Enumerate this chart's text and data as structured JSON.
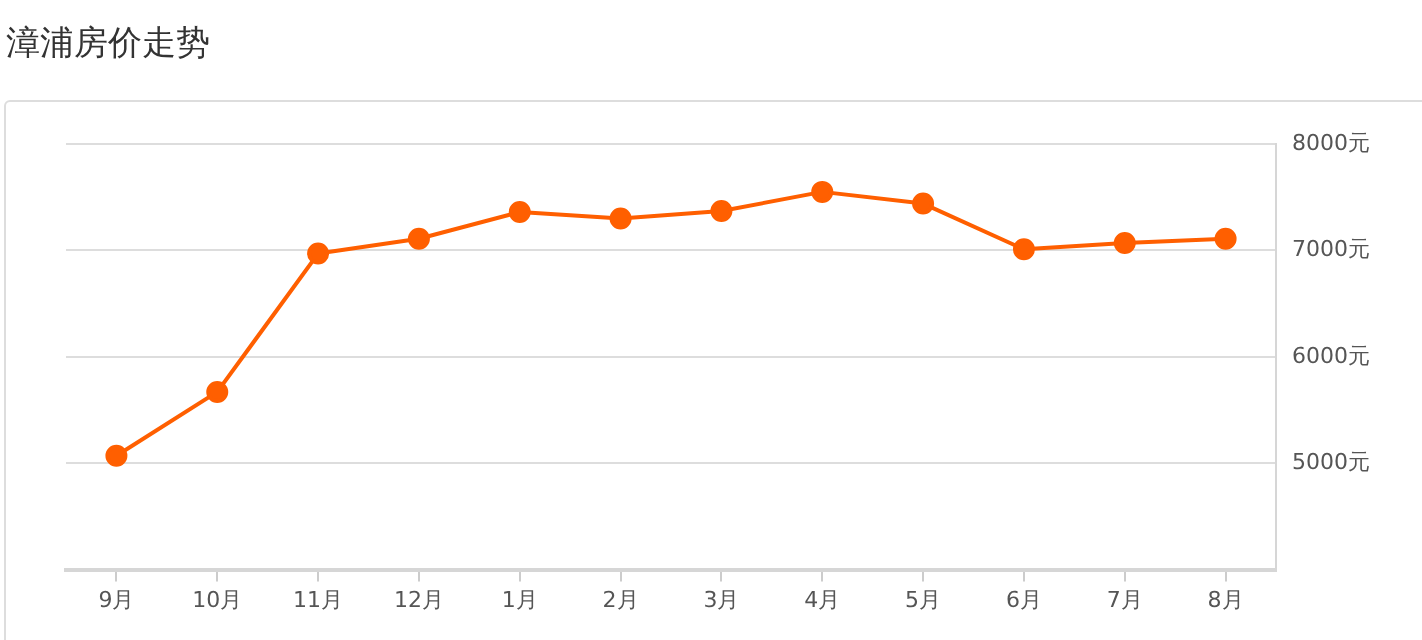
{
  "chart_data": {
    "type": "line",
    "title": "漳浦房价走势",
    "categories": [
      "9月",
      "10月",
      "11月",
      "12月",
      "1月",
      "2月",
      "3月",
      "4月",
      "5月",
      "6月",
      "7月",
      "8月"
    ],
    "series": [
      {
        "color": "#ff5f00",
        "values": [
          5070,
          5670,
          6970,
          7110,
          7360,
          7300,
          7370,
          7550,
          7440,
          7010,
          7070,
          7110
        ]
      }
    ],
    "ylim": [
      4000,
      8000
    ],
    "yticks": [
      {
        "value": 5000,
        "label": "5000元"
      },
      {
        "value": 6000,
        "label": "6000元"
      },
      {
        "value": 7000,
        "label": "7000元"
      },
      {
        "value": 8000,
        "label": "8000元"
      }
    ],
    "grid": "y",
    "marker": "circle",
    "line_style": "solid"
  }
}
